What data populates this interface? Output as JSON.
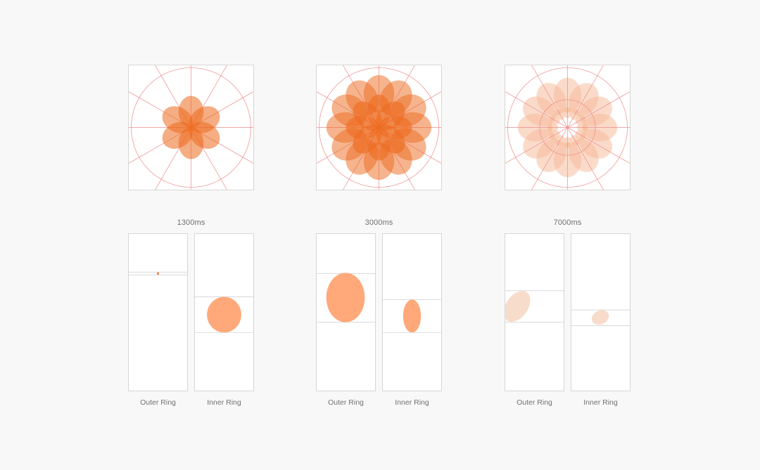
{
  "colors": {
    "background": "#f8f8f8",
    "panel": "#ffffff",
    "panel_border": "#d6d6d6",
    "grid_line": "#ee8a8a",
    "petal_orange": "#ec6a1e",
    "blob_orange": "#ffa97a",
    "blob_pale": "#f8dccb",
    "label_text": "#707070"
  },
  "stages": [
    {
      "time_label": "1300ms",
      "rings": [
        {
          "label": "Outer Ring"
        },
        {
          "label": "Inner Ring"
        }
      ]
    },
    {
      "time_label": "3000ms",
      "rings": [
        {
          "label": "Outer Ring"
        },
        {
          "label": "Inner Ring"
        }
      ]
    },
    {
      "time_label": "7000ms",
      "rings": [
        {
          "label": "Outer Ring"
        },
        {
          "label": "Inner Ring"
        }
      ]
    }
  ]
}
